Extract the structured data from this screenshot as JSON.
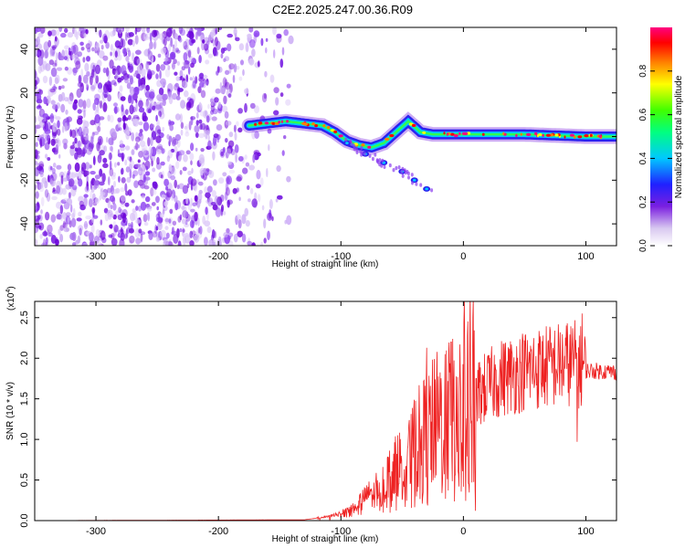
{
  "title": "C2E2.2025.247.00.36.R09",
  "chart_data": [
    {
      "type": "heatmap",
      "name": "spectrogram",
      "xlabel": "Height of straight line (km)",
      "ylabel": "Frequency (Hz)",
      "xlim": [
        -350,
        125
      ],
      "ylim": [
        -50,
        50
      ],
      "xticks": [
        -300,
        -200,
        -100,
        0,
        100
      ],
      "yticks": [
        -40,
        -20,
        0,
        20,
        40
      ],
      "noise_region_x": [
        -350,
        -140
      ],
      "ridge": [
        {
          "x": -175,
          "y": 5
        },
        {
          "x": -160,
          "y": 6
        },
        {
          "x": -145,
          "y": 7
        },
        {
          "x": -130,
          "y": 6
        },
        {
          "x": -115,
          "y": 5
        },
        {
          "x": -105,
          "y": 2
        },
        {
          "x": -95,
          "y": -2
        },
        {
          "x": -85,
          "y": -4
        },
        {
          "x": -75,
          "y": -5
        },
        {
          "x": -65,
          "y": -3
        },
        {
          "x": -55,
          "y": 2
        },
        {
          "x": -45,
          "y": 7
        },
        {
          "x": -35,
          "y": 2
        },
        {
          "x": -25,
          "y": 1
        },
        {
          "x": 0,
          "y": 1
        },
        {
          "x": 50,
          "y": 1
        },
        {
          "x": 100,
          "y": 0
        },
        {
          "x": 125,
          "y": 0
        }
      ],
      "secondary_trace": [
        {
          "x": -95,
          "y": -3
        },
        {
          "x": -80,
          "y": -8
        },
        {
          "x": -65,
          "y": -12
        },
        {
          "x": -50,
          "y": -16
        },
        {
          "x": -40,
          "y": -20
        },
        {
          "x": -30,
          "y": -24
        }
      ],
      "colorbar": {
        "label": "Normalized spectral amplitude",
        "ticks": [
          "0.0",
          "0.2",
          "0.4",
          "0.6",
          "0.8"
        ],
        "range": [
          0,
          1
        ]
      }
    },
    {
      "type": "line",
      "name": "snr",
      "xlabel": "Height of straight line (km)",
      "ylabel": "SNR (10 * v/v)",
      "multiplier": "(x10",
      "multiplier_exp": "4",
      "xlim": [
        -350,
        125
      ],
      "ylim": [
        0,
        2.7
      ],
      "xticks": [
        -300,
        -200,
        -100,
        0,
        100
      ],
      "yticks": [
        0.0,
        0.5,
        1.0,
        1.5,
        2.0,
        2.5
      ],
      "color": "#ee2222",
      "envelope": [
        {
          "x": -350,
          "y": 0.0
        },
        {
          "x": -130,
          "y": 0.01
        },
        {
          "x": -110,
          "y": 0.05
        },
        {
          "x": -95,
          "y": 0.12
        },
        {
          "x": -80,
          "y": 0.3
        },
        {
          "x": -65,
          "y": 0.5
        },
        {
          "x": -50,
          "y": 0.75
        },
        {
          "x": -35,
          "y": 1.0
        },
        {
          "x": -20,
          "y": 1.2
        },
        {
          "x": -5,
          "y": 1.35
        },
        {
          "x": 10,
          "y": 1.55
        },
        {
          "x": 30,
          "y": 1.75
        },
        {
          "x": 50,
          "y": 1.85
        },
        {
          "x": 70,
          "y": 1.9
        },
        {
          "x": 90,
          "y": 1.95
        },
        {
          "x": 100,
          "y": 1.85
        },
        {
          "x": 125,
          "y": 1.83
        }
      ],
      "spikes": [
        {
          "x": -30,
          "y": 2.13
        },
        {
          "x": -15,
          "y": 2.05
        },
        {
          "x": -10,
          "y": 2.2
        },
        {
          "x": 10,
          "y": 0.12
        },
        {
          "x": 93,
          "y": 2.68
        },
        {
          "x": 97,
          "y": 2.55
        },
        {
          "x": 93,
          "y": 0.97
        }
      ]
    }
  ]
}
